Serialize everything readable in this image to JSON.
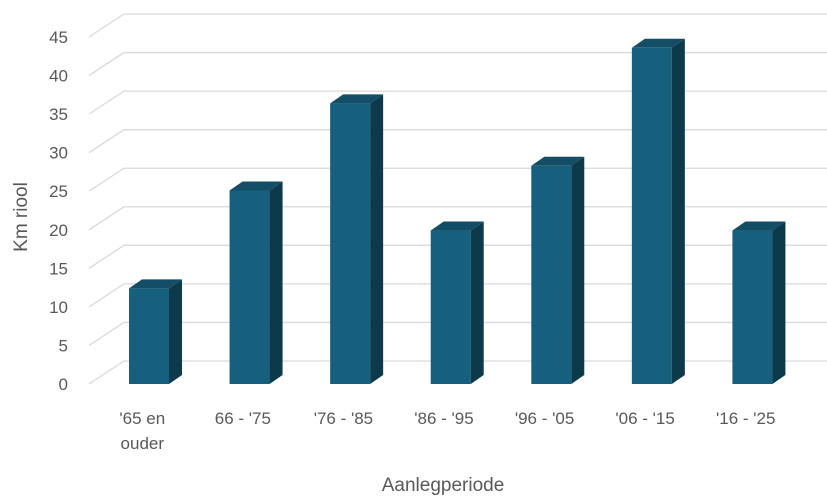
{
  "chart_data": {
    "type": "bar",
    "style": "3d-column",
    "title": "",
    "xlabel": "Aanlegperiode",
    "ylabel": "Km riool",
    "categories": [
      [
        "'65 en",
        "ouder"
      ],
      [
        "66 - '75"
      ],
      [
        "'76 - '85"
      ],
      [
        "'86 - '95"
      ],
      [
        "'96 - '05"
      ],
      [
        "'06 - '15"
      ],
      [
        "'16 - '25"
      ]
    ],
    "values": [
      12.4,
      25.1,
      36.4,
      19.9,
      28.3,
      43.6,
      19.9
    ],
    "ylim": [
      0,
      45
    ],
    "yticks": [
      0,
      5,
      10,
      15,
      20,
      25,
      30,
      35,
      40,
      45
    ],
    "grid": true,
    "legend": "none",
    "colors": {
      "bar_front": "#17607d",
      "bar_top": "#134e66",
      "bar_side": "#0d3a4b",
      "grid": "#d9d9d9",
      "text": "#595959"
    }
  }
}
